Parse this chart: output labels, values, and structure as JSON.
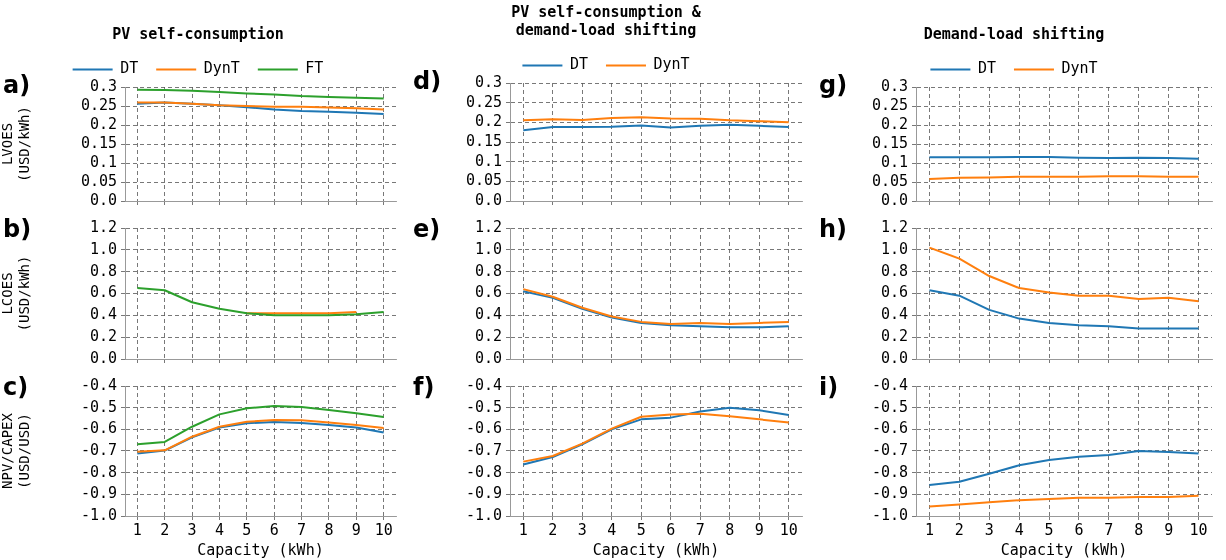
{
  "chart_data": [
    {
      "type": "line",
      "title": "PV self-consumption",
      "ylabel": "LVOES (USD/kWh)",
      "annotations": [
        "a)"
      ],
      "legend": "top",
      "grid": true,
      "tick_labels": "y",
      "x": [
        1,
        2,
        3,
        4,
        5,
        6,
        7,
        8,
        9,
        10
      ],
      "xlim": [
        0.55,
        10.45
      ],
      "xticks": [
        1,
        2,
        3,
        4,
        5,
        6,
        7,
        8,
        9,
        10
      ],
      "ylim": [
        0,
        0.3
      ],
      "yticks": [
        {
          "value": 0,
          "label": "0.0"
        },
        0.05,
        0.1,
        0.15,
        0.2,
        0.25,
        0.3
      ],
      "series": [
        {
          "name": "DT",
          "color": "#1f77b4",
          "values": [
            0.256,
            0.259,
            0.256,
            0.252,
            0.247,
            0.241,
            0.237,
            0.235,
            0.232,
            0.229
          ]
        },
        {
          "name": "DynT",
          "color": "#ff7f0e",
          "values": [
            0.259,
            0.259,
            0.256,
            0.252,
            0.25,
            0.248,
            0.248,
            0.246,
            0.244,
            0.241
          ]
        },
        {
          "name": "FT",
          "color": "#2ca02c",
          "values": [
            0.293,
            0.292,
            0.29,
            0.287,
            0.283,
            0.28,
            0.276,
            0.274,
            0.272,
            0.27
          ]
        }
      ]
    },
    {
      "type": "line",
      "ylabel": "LCOES (USD/kWh)",
      "annotations": [
        "b)"
      ],
      "grid": true,
      "tick_labels": "y",
      "x": [
        1,
        2,
        3,
        4,
        5,
        6,
        7,
        8,
        9,
        10
      ],
      "xlim": [
        0.55,
        10.45
      ],
      "xticks": [
        1,
        2,
        3,
        4,
        5,
        6,
        7,
        8,
        9,
        10
      ],
      "ylim": [
        0,
        1.2
      ],
      "yticks": [
        {
          "value": 0,
          "label": "0.0"
        },
        0.2,
        0.4,
        0.6,
        0.8,
        {
          "value": 1,
          "label": "1.0"
        },
        1.2
      ],
      "series": [
        {
          "color": "#ff7f0e",
          "values": [
            null,
            null,
            null,
            null,
            0.42,
            0.42,
            0.42,
            0.42,
            0.43,
            null
          ]
        },
        {
          "color": "#2ca02c",
          "values": [
            0.65,
            0.63,
            0.52,
            0.46,
            0.42,
            0.4,
            0.4,
            0.4,
            0.41,
            0.43
          ]
        }
      ]
    },
    {
      "type": "line",
      "ylabel": "NPV/CAPEX (USD/USD)",
      "xlabel": "Capacity (kWh)",
      "annotations": [
        "c)"
      ],
      "grid": true,
      "x": [
        1,
        2,
        3,
        4,
        5,
        6,
        7,
        8,
        9,
        10
      ],
      "xlim": [
        0.55,
        10.45
      ],
      "xticks": [
        1,
        2,
        3,
        4,
        5,
        6,
        7,
        8,
        9,
        10
      ],
      "ylim": [
        -1,
        -0.4
      ],
      "yticks": [
        {
          "value": -1,
          "label": "-1.0"
        },
        -0.9,
        -0.8,
        -0.7,
        -0.6,
        -0.5,
        -0.4
      ],
      "series": [
        {
          "color": "#1f77b4",
          "values": [
            -0.711,
            -0.698,
            -0.637,
            -0.592,
            -0.572,
            -0.566,
            -0.571,
            -0.58,
            -0.592,
            -0.615
          ]
        },
        {
          "color": "#ff7f0e",
          "values": [
            -0.703,
            -0.697,
            -0.634,
            -0.588,
            -0.565,
            -0.557,
            -0.558,
            -0.568,
            -0.58,
            -0.594
          ]
        },
        {
          "color": "#2ca02c",
          "values": [
            -0.669,
            -0.658,
            -0.588,
            -0.531,
            -0.503,
            -0.492,
            -0.497,
            -0.511,
            -0.526,
            -0.543
          ]
        }
      ]
    },
    {
      "type": "line",
      "title": "PV self-consumption & demand-load shifting",
      "annotations": [
        "d)"
      ],
      "legend": "top",
      "grid": true,
      "tick_labels": "y",
      "x": [
        1,
        2,
        3,
        4,
        5,
        6,
        7,
        8,
        9,
        10
      ],
      "xlim": [
        0.55,
        10.45
      ],
      "xticks": [
        1,
        2,
        3,
        4,
        5,
        6,
        7,
        8,
        9,
        10
      ],
      "ylim": [
        0,
        0.3
      ],
      "yticks": [
        {
          "value": 0,
          "label": "0.0"
        },
        0.05,
        0.1,
        0.15,
        0.2,
        0.25,
        0.3
      ],
      "series": [
        {
          "name": "DT",
          "color": "#1f77b4",
          "values": [
            0.18,
            0.188,
            0.188,
            0.189,
            0.192,
            0.187,
            0.191,
            0.194,
            0.191,
            0.188
          ]
        },
        {
          "name": "DynT",
          "color": "#ff7f0e",
          "values": [
            0.205,
            0.208,
            0.206,
            0.211,
            0.213,
            0.21,
            0.209,
            0.205,
            0.203,
            0.2
          ]
        }
      ]
    },
    {
      "type": "line",
      "annotations": [
        "e)"
      ],
      "grid": true,
      "tick_labels": "y",
      "x": [
        1,
        2,
        3,
        4,
        5,
        6,
        7,
        8,
        9,
        10
      ],
      "xlim": [
        0.55,
        10.45
      ],
      "xticks": [
        1,
        2,
        3,
        4,
        5,
        6,
        7,
        8,
        9,
        10
      ],
      "ylim": [
        0,
        1.2
      ],
      "yticks": [
        {
          "value": 0,
          "label": "0.0"
        },
        0.2,
        0.4,
        0.6,
        0.8,
        {
          "value": 1,
          "label": "1.0"
        },
        1.2
      ],
      "series": [
        {
          "color": "#1f77b4",
          "values": [
            0.62,
            0.56,
            0.46,
            0.38,
            0.33,
            0.31,
            0.3,
            0.29,
            0.29,
            0.3
          ]
        },
        {
          "color": "#ff7f0e",
          "values": [
            0.64,
            0.57,
            0.47,
            0.39,
            0.34,
            0.32,
            0.33,
            0.32,
            0.33,
            0.34
          ]
        }
      ]
    },
    {
      "type": "line",
      "xlabel": "Capacity (kWh)",
      "annotations": [
        "f)"
      ],
      "grid": true,
      "x": [
        1,
        2,
        3,
        4,
        5,
        6,
        7,
        8,
        9,
        10
      ],
      "xlim": [
        0.55,
        10.45
      ],
      "xticks": [
        1,
        2,
        3,
        4,
        5,
        6,
        7,
        8,
        9,
        10
      ],
      "ylim": [
        -1,
        -0.4
      ],
      "yticks": [
        {
          "value": -1,
          "label": "-1.0"
        },
        -0.9,
        -0.8,
        -0.7,
        -0.6,
        -0.5,
        -0.4
      ],
      "series": [
        {
          "color": "#1f77b4",
          "values": [
            -0.762,
            -0.728,
            -0.669,
            -0.6,
            -0.554,
            -0.546,
            -0.518,
            -0.5,
            -0.512,
            -0.534
          ]
        },
        {
          "color": "#ff7f0e",
          "values": [
            -0.749,
            -0.723,
            -0.666,
            -0.597,
            -0.542,
            -0.531,
            -0.528,
            -0.54,
            -0.554,
            -0.568
          ]
        }
      ]
    },
    {
      "type": "line",
      "title": "Demand-load shifting",
      "annotations": [
        "g)"
      ],
      "legend": "top",
      "grid": true,
      "tick_labels": "y",
      "x": [
        1,
        2,
        3,
        4,
        5,
        6,
        7,
        8,
        9,
        10
      ],
      "xlim": [
        0.55,
        10.45
      ],
      "xticks": [
        1,
        2,
        3,
        4,
        5,
        6,
        7,
        8,
        9,
        10
      ],
      "ylim": [
        0,
        0.3
      ],
      "yticks": [
        {
          "value": 0,
          "label": "0.0"
        },
        0.05,
        0.1,
        0.15,
        0.2,
        0.25,
        0.3
      ],
      "series": [
        {
          "name": "DT",
          "color": "#1f77b4",
          "values": [
            0.115,
            0.115,
            0.115,
            0.116,
            0.116,
            0.114,
            0.113,
            0.114,
            0.113,
            0.111
          ]
        },
        {
          "name": "DynT",
          "color": "#ff7f0e",
          "values": [
            0.058,
            0.061,
            0.062,
            0.064,
            0.064,
            0.064,
            0.065,
            0.065,
            0.064,
            0.064
          ]
        }
      ]
    },
    {
      "type": "line",
      "annotations": [
        "h)"
      ],
      "grid": true,
      "tick_labels": "y",
      "x": [
        1,
        2,
        3,
        4,
        5,
        6,
        7,
        8,
        9,
        10
      ],
      "xlim": [
        0.55,
        10.45
      ],
      "xticks": [
        1,
        2,
        3,
        4,
        5,
        6,
        7,
        8,
        9,
        10
      ],
      "ylim": [
        0,
        1.2
      ],
      "yticks": [
        {
          "value": 0,
          "label": "0.0"
        },
        0.2,
        0.4,
        0.6,
        0.8,
        {
          "value": 1,
          "label": "1.0"
        },
        1.2
      ],
      "series": [
        {
          "color": "#1f77b4",
          "values": [
            0.63,
            0.58,
            0.45,
            0.37,
            0.33,
            0.31,
            0.3,
            0.28,
            0.28,
            0.28
          ]
        },
        {
          "color": "#ff7f0e",
          "values": [
            1.02,
            0.92,
            0.76,
            0.65,
            0.61,
            0.58,
            0.58,
            0.55,
            0.56,
            0.53
          ]
        }
      ]
    },
    {
      "type": "line",
      "xlabel": "Capacity (kWh)",
      "annotations": [
        "i)"
      ],
      "grid": true,
      "x": [
        1,
        2,
        3,
        4,
        5,
        6,
        7,
        8,
        9,
        10
      ],
      "xlim": [
        0.55,
        10.45
      ],
      "xticks": [
        1,
        2,
        3,
        4,
        5,
        6,
        7,
        8,
        9,
        10
      ],
      "ylim": [
        -1,
        -0.4
      ],
      "yticks": [
        {
          "value": -1,
          "label": "-1.0"
        },
        -0.9,
        -0.8,
        -0.7,
        -0.6,
        -0.5,
        -0.4
      ],
      "series": [
        {
          "color": "#1f77b4",
          "values": [
            -0.857,
            -0.842,
            -0.805,
            -0.766,
            -0.742,
            -0.726,
            -0.718,
            -0.7,
            -0.705,
            -0.711
          ]
        },
        {
          "color": "#ff7f0e",
          "values": [
            -0.956,
            -0.947,
            -0.936,
            -0.927,
            -0.921,
            -0.916,
            -0.916,
            -0.912,
            -0.912,
            -0.907
          ]
        }
      ]
    }
  ]
}
